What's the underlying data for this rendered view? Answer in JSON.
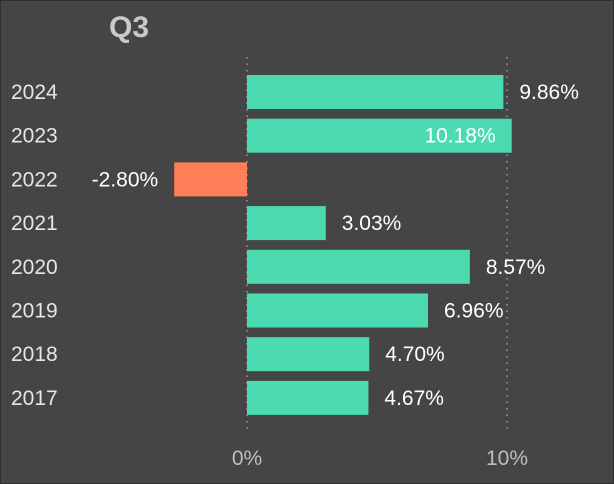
{
  "chart_data": {
    "type": "bar",
    "orientation": "horizontal",
    "title": "Q3",
    "categories": [
      "2024",
      "2023",
      "2022",
      "2021",
      "2020",
      "2019",
      "2018",
      "2017"
    ],
    "values": [
      9.86,
      10.18,
      -2.8,
      3.03,
      8.57,
      6.96,
      4.7,
      4.67
    ],
    "value_labels": [
      "9.86%",
      "10.18%",
      "-2.80%",
      "3.03%",
      "8.57%",
      "6.96%",
      "4.70%",
      "4.67%"
    ],
    "x_ticks": [
      0,
      10
    ],
    "x_tick_labels": [
      "0%",
      "10%"
    ],
    "xlim": [
      -2.8,
      10.18
    ],
    "grid": "vertical dotted at ticks",
    "colors": {
      "positive": "#4cdbb0",
      "negative": "#ff7f59",
      "background": "#454545",
      "label_inside": "#ffffff"
    }
  }
}
